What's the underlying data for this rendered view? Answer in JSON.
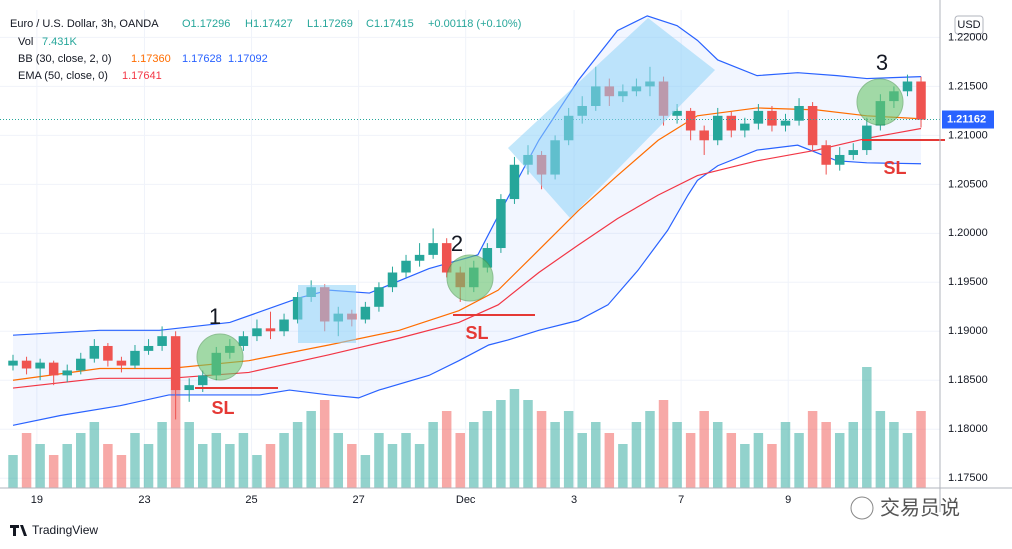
{
  "chart_data": {
    "type": "candlestick",
    "legend": {
      "symbol": "Euro / U.S. Dollar, 3h, OANDA",
      "ohlc": [
        "O1.17296",
        "H1.17427",
        "L1.17269",
        "C1.17415",
        "+0.00118 (+0.10%)"
      ],
      "vol": [
        "Vol",
        "7.431K"
      ],
      "bb": [
        "BB (30, close, 2, 0)",
        "1.17360",
        "1.17628",
        "1.17092"
      ],
      "ema": [
        "EMA (50, close, 0)",
        "1.17641"
      ]
    },
    "currency": "USD",
    "up_color": "#26a69a",
    "down_color": "#ef5350",
    "ylim": [
      1.174,
      1.2228
    ],
    "yticks": [
      {
        "value": 1.175,
        "label": "1.17500"
      },
      {
        "value": 1.18,
        "label": "1.18000"
      },
      {
        "value": 1.185,
        "label": "1.18500"
      },
      {
        "value": 1.19,
        "label": "1.19000"
      },
      {
        "value": 1.195,
        "label": "1.19500"
      },
      {
        "value": 1.2,
        "label": "1.20000"
      },
      {
        "value": 1.205,
        "label": "1.20500"
      },
      {
        "value": 1.21,
        "label": "1.21000"
      },
      {
        "value": 1.215,
        "label": "1.21500"
      },
      {
        "value": 1.22,
        "label": "1.22000"
      }
    ],
    "xlim": [
      -0.96,
      68.4
    ],
    "xticks": [
      {
        "value": 1.76,
        "label": "19"
      },
      {
        "value": 9.7,
        "label": "23"
      },
      {
        "value": 17.6,
        "label": "25"
      },
      {
        "value": 25.5,
        "label": "27"
      },
      {
        "value": 33.4,
        "label": "Dec"
      },
      {
        "value": 41.4,
        "label": "3"
      },
      {
        "value": 49.3,
        "label": "7"
      },
      {
        "value": 57.2,
        "label": "9"
      }
    ],
    "grid": true,
    "last_price": {
      "value": 1.21162,
      "label": "1.21162"
    },
    "candles": [
      [
        1.1865,
        1.1876,
        1.186,
        1.187
      ],
      [
        1.187,
        1.1874,
        1.1856,
        1.1862
      ],
      [
        1.1862,
        1.1872,
        1.185,
        1.1868
      ],
      [
        1.1868,
        1.187,
        1.1845,
        1.1855
      ],
      [
        1.1855,
        1.1866,
        1.1848,
        1.186
      ],
      [
        1.186,
        1.1878,
        1.1856,
        1.1872
      ],
      [
        1.1872,
        1.1892,
        1.1868,
        1.1885
      ],
      [
        1.1885,
        1.1888,
        1.1864,
        1.187
      ],
      [
        1.187,
        1.1874,
        1.1858,
        1.1865
      ],
      [
        1.1865,
        1.1886,
        1.1862,
        1.188
      ],
      [
        1.188,
        1.1892,
        1.1876,
        1.1885
      ],
      [
        1.1885,
        1.1905,
        1.188,
        1.1895
      ],
      [
        1.1895,
        1.19,
        1.181,
        1.184
      ],
      [
        1.184,
        1.1852,
        1.1828,
        1.1845
      ],
      [
        1.1845,
        1.186,
        1.1838,
        1.1855
      ],
      [
        1.1855,
        1.1884,
        1.185,
        1.1878
      ],
      [
        1.1878,
        1.1892,
        1.1872,
        1.1885
      ],
      [
        1.1885,
        1.19,
        1.188,
        1.1895
      ],
      [
        1.1895,
        1.1912,
        1.189,
        1.1903
      ],
      [
        1.1903,
        1.192,
        1.1892,
        1.19
      ],
      [
        1.19,
        1.1918,
        1.1895,
        1.1912
      ],
      [
        1.1912,
        1.194,
        1.1908,
        1.1935
      ],
      [
        1.1935,
        1.1952,
        1.193,
        1.1945
      ],
      [
        1.1945,
        1.1948,
        1.19,
        1.191
      ],
      [
        1.191,
        1.1925,
        1.1895,
        1.1918
      ],
      [
        1.1918,
        1.1922,
        1.1905,
        1.1912
      ],
      [
        1.1912,
        1.193,
        1.1908,
        1.1925
      ],
      [
        1.1925,
        1.195,
        1.192,
        1.1945
      ],
      [
        1.1945,
        1.1966,
        1.194,
        1.196
      ],
      [
        1.196,
        1.1978,
        1.1955,
        1.1972
      ],
      [
        1.1972,
        1.199,
        1.1966,
        1.1978
      ],
      [
        1.1978,
        1.2005,
        1.1974,
        1.199
      ],
      [
        1.199,
        1.1995,
        1.1955,
        1.196
      ],
      [
        1.196,
        1.1966,
        1.193,
        1.1945
      ],
      [
        1.1945,
        1.1972,
        1.194,
        1.1965
      ],
      [
        1.1965,
        1.199,
        1.196,
        1.1985
      ],
      [
        1.1985,
        1.204,
        1.198,
        1.2035
      ],
      [
        1.2035,
        1.2078,
        1.203,
        1.207
      ],
      [
        1.207,
        1.209,
        1.206,
        1.208
      ],
      [
        1.208,
        1.2084,
        1.2045,
        1.206
      ],
      [
        1.206,
        1.21,
        1.2055,
        1.2095
      ],
      [
        1.2095,
        1.2128,
        1.209,
        1.212
      ],
      [
        1.212,
        1.214,
        1.2112,
        1.213
      ],
      [
        1.213,
        1.217,
        1.2125,
        1.215
      ],
      [
        1.215,
        1.2158,
        1.213,
        1.214
      ],
      [
        1.214,
        1.2152,
        1.2134,
        1.2145
      ],
      [
        1.2145,
        1.2158,
        1.214,
        1.215
      ],
      [
        1.215,
        1.217,
        1.214,
        1.2155
      ],
      [
        1.2155,
        1.216,
        1.211,
        1.212
      ],
      [
        1.212,
        1.2132,
        1.2112,
        1.2125
      ],
      [
        1.2125,
        1.2128,
        1.2095,
        1.2105
      ],
      [
        1.2105,
        1.211,
        1.208,
        1.2095
      ],
      [
        1.2095,
        1.2128,
        1.209,
        1.212
      ],
      [
        1.212,
        1.2124,
        1.2098,
        1.2105
      ],
      [
        1.2105,
        1.2118,
        1.2098,
        1.2112
      ],
      [
        1.2112,
        1.2132,
        1.2106,
        1.2125
      ],
      [
        1.2125,
        1.213,
        1.2104,
        1.211
      ],
      [
        1.211,
        1.2122,
        1.2104,
        1.2115
      ],
      [
        1.2115,
        1.2138,
        1.211,
        1.213
      ],
      [
        1.213,
        1.2134,
        1.2085,
        1.209
      ],
      [
        1.209,
        1.2095,
        1.206,
        1.207
      ],
      [
        1.207,
        1.2088,
        1.2064,
        1.208
      ],
      [
        1.208,
        1.2092,
        1.2075,
        1.2085
      ],
      [
        1.2085,
        1.2118,
        1.208,
        1.211
      ],
      [
        1.211,
        1.2142,
        1.2105,
        1.2135
      ],
      [
        1.2135,
        1.215,
        1.2128,
        1.2145
      ],
      [
        1.2145,
        1.2162,
        1.214,
        1.2155
      ],
      [
        1.2155,
        1.216,
        1.2108,
        1.2116
      ]
    ],
    "volume_lim": [
      0,
      16
    ],
    "volume": [
      3,
      5,
      4,
      3,
      4,
      5,
      6,
      4,
      3,
      5,
      4,
      6,
      9,
      6,
      4,
      5,
      4,
      5,
      3,
      4,
      5,
      6,
      7,
      8,
      5,
      4,
      3,
      5,
      4,
      5,
      4,
      6,
      7,
      5,
      6,
      7,
      8,
      9,
      8,
      7,
      6,
      7,
      5,
      6,
      5,
      4,
      6,
      7,
      8,
      6,
      5,
      7,
      6,
      5,
      4,
      5,
      4,
      6,
      5,
      7,
      6,
      5,
      6,
      11,
      7,
      6,
      5,
      7
    ],
    "lines": [
      {
        "name": "bb_upper",
        "color": "#2962ff",
        "x": [
          0,
          6.4,
          10.8,
          16,
          21.1,
          23.3,
          26.3,
          30.7,
          34.3,
          35.8,
          38.8,
          41.7,
          44.6,
          46.8,
          49,
          50.5,
          52,
          54.9,
          57.9,
          60.8,
          63,
          67
        ],
        "values": [
          1.1896,
          1.1901,
          1.1901,
          1.1909,
          1.1934,
          1.1942,
          1.1939,
          1.1964,
          1.1978,
          1.2018,
          1.2095,
          1.2156,
          1.2207,
          1.2222,
          1.2212,
          1.2197,
          1.2177,
          1.2161,
          1.2164,
          1.2161,
          1.2158,
          1.216
        ]
      },
      {
        "name": "bb_lower",
        "color": "#2962ff",
        "x": [
          0,
          3.5,
          7.9,
          11.5,
          15.2,
          18.2,
          20.4,
          23.3,
          25.5,
          27,
          30.7,
          32.9,
          35.1,
          36.5,
          38.8,
          41.7,
          43.9,
          46.1,
          48.3,
          49.8,
          50.5,
          52,
          54.9,
          57.9,
          60.8,
          63,
          67
        ],
        "values": [
          1.1804,
          1.1814,
          1.1824,
          1.1835,
          1.1835,
          1.1835,
          1.184,
          1.1835,
          1.1832,
          1.184,
          1.1855,
          1.187,
          1.1886,
          1.1891,
          1.1901,
          1.1911,
          1.1927,
          1.1962,
          1.2003,
          1.2039,
          1.2054,
          1.2069,
          1.2085,
          1.209,
          1.2074,
          1.2072,
          1.2071
        ]
      },
      {
        "name": "bb_basis",
        "color": "#ff6d00",
        "x": [
          0,
          6.4,
          11.5,
          17.4,
          23.3,
          28.5,
          32.9,
          35.8,
          38.8,
          41.7,
          44.6,
          47.6,
          50.5,
          54.9,
          59.3,
          63,
          67
        ],
        "values": [
          1.185,
          1.1862,
          1.1862,
          1.187,
          1.1886,
          1.1901,
          1.1921,
          1.1942,
          1.1983,
          1.2023,
          1.2059,
          1.2095,
          1.212,
          1.2128,
          1.2126,
          1.212,
          1.2117
        ]
      },
      {
        "name": "ema",
        "color": "#f23645",
        "x": [
          0,
          6.4,
          11.5,
          17.4,
          23.3,
          28.5,
          32.9,
          35.8,
          38.8,
          41.7,
          44.6,
          47.6,
          50.5,
          54.9,
          59.3,
          63,
          67
        ],
        "values": [
          1.1842,
          1.1852,
          1.1852,
          1.1858,
          1.1876,
          1.1893,
          1.1909,
          1.1927,
          1.196,
          1.1988,
          1.2015,
          1.2039,
          1.2059,
          1.2074,
          1.2085,
          1.2097,
          1.2107
        ]
      }
    ],
    "annotations": {
      "labels": [
        "1",
        "2",
        "3"
      ],
      "stop": [
        "SL",
        "SL",
        "SL"
      ]
    },
    "brand": "TradingView",
    "watermark": "交易员说"
  }
}
